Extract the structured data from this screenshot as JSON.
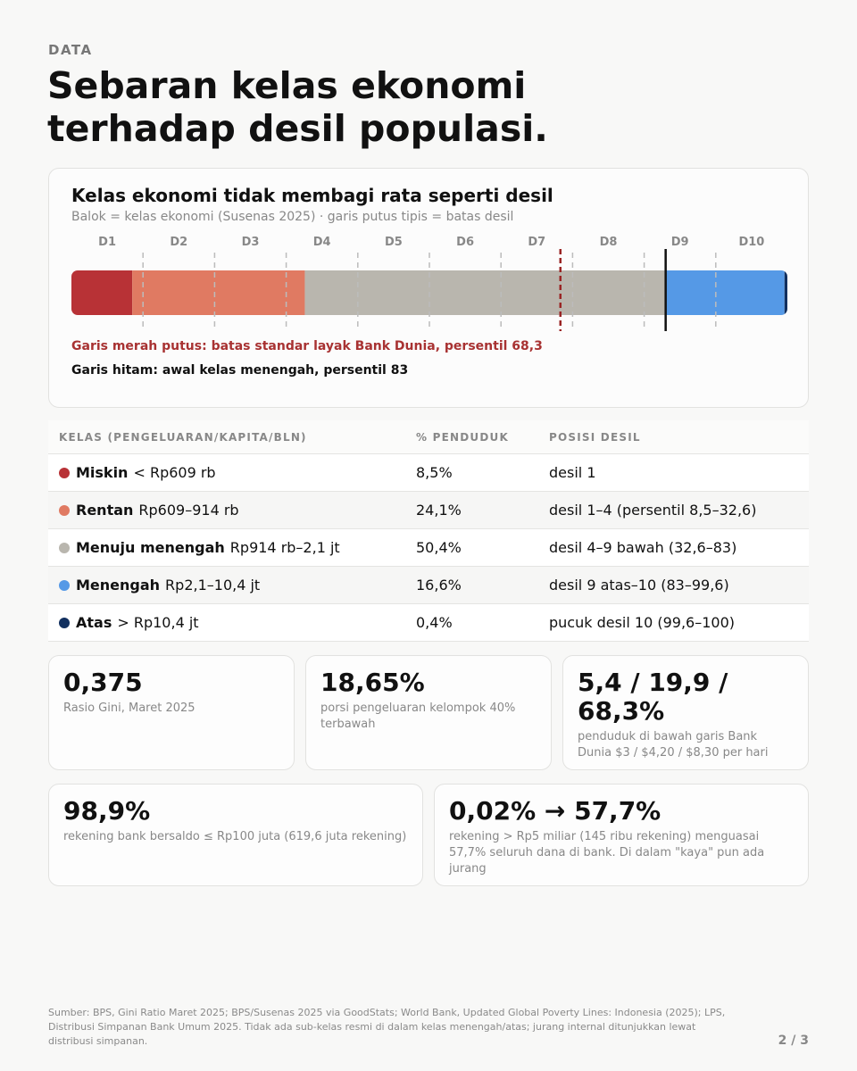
{
  "kicker": "DATA",
  "title_line1": "Sebaran kelas ekonomi",
  "title_line2": "terhadap desil populasi.",
  "chart_data": {
    "type": "bar",
    "orientation": "horizontal-stacked",
    "title": "Kelas ekonomi tidak membagi rata seperti desil",
    "subtitle": "Balok = kelas ekonomi (Susenas 2025) · garis putus tipis = batas desil",
    "categories": [
      "D1",
      "D2",
      "D3",
      "D4",
      "D5",
      "D6",
      "D7",
      "D8",
      "D9",
      "D10"
    ],
    "series": [
      {
        "name": "Miskin",
        "value": 8.5,
        "color": "#b83236"
      },
      {
        "name": "Rentan",
        "value": 24.1,
        "color": "#e07a62"
      },
      {
        "name": "Menuju menengah",
        "value": 50.4,
        "color": "#b9b6ae"
      },
      {
        "name": "Menengah",
        "value": 16.6,
        "color": "#5599e6"
      },
      {
        "name": "Atas",
        "value": 0.4,
        "color": "#12305f"
      }
    ],
    "xlim": [
      0,
      100
    ],
    "decile_boundaries": [
      10,
      20,
      30,
      40,
      50,
      60,
      70,
      80,
      90
    ],
    "reference_lines": [
      {
        "value": 68.3,
        "style": "dashed",
        "color": "#9a2424"
      },
      {
        "value": 83,
        "style": "solid",
        "color": "#111111"
      }
    ]
  },
  "note_red": "Garis merah putus: batas standar layak Bank Dunia, persentil 68,3",
  "note_black": "Garis hitam: awal kelas menengah, persentil 83",
  "table": {
    "headers": [
      "KELAS (PENGELUARAN/KAPITA/BLN)",
      "% PENDUDUK",
      "POSISI DESIL"
    ],
    "rows": [
      {
        "name": "Miskin",
        "range": "< Rp609 rb",
        "pct": "8,5%",
        "pos": "desil 1",
        "color": "#b83236"
      },
      {
        "name": "Rentan",
        "range": "Rp609–914 rb",
        "pct": "24,1%",
        "pos": "desil 1–4 (persentil 8,5–32,6)",
        "color": "#e07a62"
      },
      {
        "name": "Menuju menengah",
        "range": "Rp914 rb–2,1 jt",
        "pct": "50,4%",
        "pos": "desil 4–9 bawah (32,6–83)",
        "color": "#b9b6ae"
      },
      {
        "name": "Menengah",
        "range": "Rp2,1–10,4 jt",
        "pct": "16,6%",
        "pos": "desil 9 atas–10 (83–99,6)",
        "color": "#5599e6"
      },
      {
        "name": "Atas",
        "range": "> Rp10,4 jt",
        "pct": "0,4%",
        "pos": "pucuk desil 10 (99,6–100)",
        "color": "#12305f"
      }
    ]
  },
  "stats": [
    {
      "value": "0,375",
      "label": "Rasio Gini, Maret 2025"
    },
    {
      "value": "18,65%",
      "label": "porsi pengeluaran kelompok 40% terbawah"
    },
    {
      "value": "5,4 / 19,9 / 68,3%",
      "label": "penduduk di bawah garis Bank Dunia $3 / $4,20 / $8,30 per hari"
    },
    {
      "value": "98,9%",
      "label": "rekening bank bersaldo ≤ Rp100 juta (619,6 juta rekening)"
    },
    {
      "value": "0,02% → 57,7%",
      "label": "rekening > Rp5 miliar (145 ribu rekening) menguasai 57,7% seluruh dana di bank. Di dalam \"kaya\" pun ada jurang"
    }
  ],
  "footer": "Sumber: BPS, Gini Ratio Maret 2025; BPS/Susenas 2025 via GoodStats; World Bank, Updated Global Poverty Lines: Indonesia (2025); LPS, Distribusi Simpanan Bank Umum 2025. Tidak ada sub-kelas resmi di dalam kelas menengah/atas; jurang internal ditunjukkan lewat distribusi simpanan.",
  "page_number": "2 / 3"
}
